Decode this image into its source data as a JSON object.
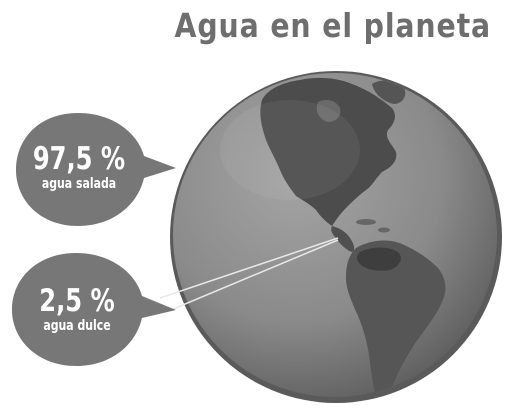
{
  "title": "Agua en el planeta",
  "callouts": {
    "salada": {
      "percent": "97,5 %",
      "label": "agua salada"
    },
    "dulce": {
      "percent": "2,5 %",
      "label": "agua dulce"
    }
  },
  "colors": {
    "ocean": "#8a8a8a",
    "land_dark": "#4a4a4a",
    "land_mid": "#5e5e5e",
    "bubble": "#777777",
    "title": "#6e6e6e"
  }
}
